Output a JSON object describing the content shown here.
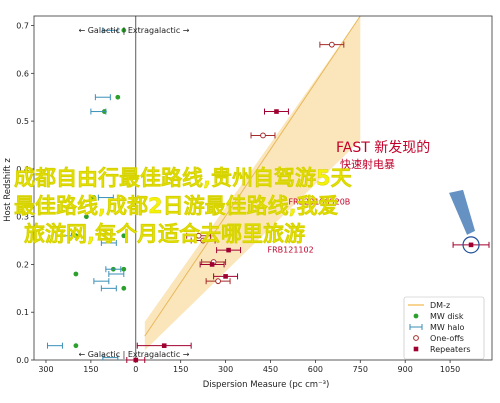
{
  "chart_data": {
    "type": "scatter",
    "xlabel": "Dispersion Measure (pc cm⁻³)",
    "ylabel": "Host Redshift z",
    "xlim": [
      -340,
      1190
    ],
    "ylim": [
      0,
      0.72
    ],
    "x_tick_values": [
      -300,
      -150,
      0,
      150,
      300,
      450,
      600,
      750,
      900,
      1050
    ],
    "x_tick_labels": [
      "300",
      "150",
      "0",
      "150",
      "300",
      "450",
      "600",
      "750",
      "900",
      "1050"
    ],
    "y_tick_values": [
      0.0,
      0.1,
      0.2,
      0.3,
      0.4,
      0.5,
      0.6,
      0.7
    ],
    "y_tick_labels": [
      "0.0",
      "0.1",
      "0.2",
      "0.3",
      "0.4",
      "0.5",
      "0.6",
      "0.7"
    ],
    "region_label_top": "← Galactic | Extragalactic →",
    "region_label_bottom": "← Galactic | Extragalactic →",
    "dmz_band": {
      "x": [
        30,
        750
      ],
      "z_center": [
        0.05,
        0.72
      ],
      "z_low": [
        0.02,
        0.46
      ],
      "z_high": [
        0.08,
        0.72
      ],
      "color": "#fbe3b5",
      "line_color": "#e8b85a"
    },
    "legend": [
      {
        "label": "DM-z",
        "marker": "line",
        "color": "#f2b84b"
      },
      {
        "label": "MW disk",
        "marker": "filled-circle",
        "color": "#2ca02c"
      },
      {
        "label": "MW halo",
        "marker": "errorbar",
        "color": "#3a8fb7"
      },
      {
        "label": "One-offs",
        "marker": "open-circle",
        "color": "#a52a2a"
      },
      {
        "label": "Repeaters",
        "marker": "filled-square",
        "color": "#a0002f"
      }
    ],
    "series": [
      {
        "name": "MW disk",
        "color": "#2ca02c",
        "points": [
          {
            "x": -40,
            "y": 0.69
          },
          {
            "x": -60,
            "y": 0.55
          },
          {
            "x": -105,
            "y": 0.52
          },
          {
            "x": -140,
            "y": 0.34
          },
          {
            "x": -165,
            "y": 0.3
          },
          {
            "x": -200,
            "y": 0.26
          },
          {
            "x": -40,
            "y": 0.26
          },
          {
            "x": -40,
            "y": 0.19
          },
          {
            "x": -75,
            "y": 0.19
          },
          {
            "x": -200,
            "y": 0.18
          },
          {
            "x": -40,
            "y": 0.15
          },
          {
            "x": -200,
            "y": 0.03
          }
        ]
      },
      {
        "name": "MW halo",
        "color": "#3a8fb7",
        "points": [
          {
            "x": -85,
            "y": 0.69,
            "xerr": 25
          },
          {
            "x": -110,
            "y": 0.55,
            "xerr": 25
          },
          {
            "x": -125,
            "y": 0.52,
            "xerr": 25
          },
          {
            "x": -100,
            "y": 0.34,
            "xerr": 25
          },
          {
            "x": -240,
            "y": 0.26,
            "xerr": 25
          },
          {
            "x": -90,
            "y": 0.245,
            "xerr": 25
          },
          {
            "x": -75,
            "y": 0.19,
            "xerr": 25
          },
          {
            "x": -65,
            "y": 0.18,
            "xerr": 25
          },
          {
            "x": -115,
            "y": 0.165,
            "xerr": 25
          },
          {
            "x": -90,
            "y": 0.15,
            "xerr": 25
          },
          {
            "x": -270,
            "y": 0.03,
            "xerr": 25
          },
          {
            "x": -85,
            "y": 0.005,
            "xerr": 25
          }
        ]
      },
      {
        "name": "One-offs",
        "color": "#a52a2a",
        "points": [
          {
            "x": 655,
            "y": 0.66,
            "xerr": 40
          },
          {
            "x": 425,
            "y": 0.47,
            "xerr": 40
          },
          {
            "x": 210,
            "y": 0.26,
            "xerr": 40
          },
          {
            "x": 225,
            "y": 0.25,
            "xerr": 40
          },
          {
            "x": 260,
            "y": 0.205,
            "xerr": 40
          },
          {
            "x": 275,
            "y": 0.165,
            "xerr": 40
          }
        ]
      },
      {
        "name": "Repeaters",
        "color": "#a0002f",
        "points": [
          {
            "x": 470,
            "y": 0.52,
            "xerr": 40
          },
          {
            "x": 310,
            "y": 0.23,
            "xerr": 40
          },
          {
            "x": 255,
            "y": 0.2,
            "xerr": 40
          },
          {
            "x": 300,
            "y": 0.175,
            "xerr": 40
          },
          {
            "x": 95,
            "y": 0.03,
            "xerr": 90
          },
          {
            "x": 0,
            "y": 0.0,
            "xerr": 30
          },
          {
            "x": 1120,
            "y": 0.241,
            "xerr": 60
          }
        ]
      }
    ],
    "highlight": {
      "x": 1120,
      "y": 0.241,
      "ring_color": "#1f4f99",
      "fill": "#4a7fb8"
    },
    "point_labels": [
      {
        "text": "FRB121102",
        "x": 440,
        "y": 0.225,
        "color": "#c2002a"
      },
      {
        "text": "FRB20190520B",
        "x": 510,
        "y": 0.325,
        "color": "#c2002a"
      }
    ],
    "annotation": {
      "title": "FAST 新发现的",
      "subtitle": "快速射电暴",
      "color": "#c2002a"
    }
  },
  "overlay": {
    "lines": [
      "成都自由行最佳路线,贵州自驾游5天",
      "最佳路线,成都2日游最佳路线,我爱",
      "旅游网,每个月适合去哪里旅游"
    ],
    "color": "#f4f10a"
  }
}
